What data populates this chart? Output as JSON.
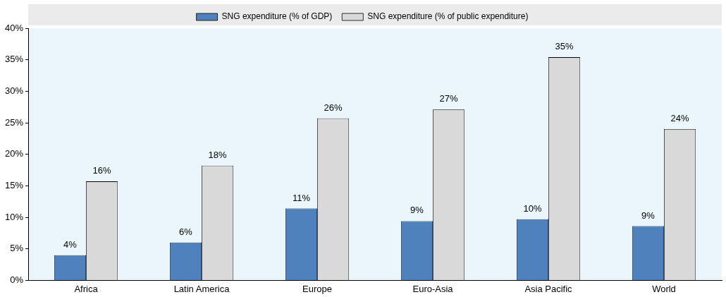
{
  "chart_data": {
    "type": "bar",
    "categories": [
      "Africa",
      "Latin America",
      "Europe",
      "Euro-Asia",
      "Asia Pacific",
      "World"
    ],
    "series": [
      {
        "name": "SNG expenditure (% of GDP)",
        "color": "#4f81bd",
        "values": [
          4.0,
          6.0,
          11.4,
          9.4,
          9.7,
          8.6
        ],
        "value_labels": [
          "4%",
          "6%",
          "11%",
          "9%",
          "10%",
          "9%"
        ]
      },
      {
        "name": "SNG expenditure (% of public expenditure)",
        "color": "#d9d9d9",
        "values": [
          15.7,
          18.2,
          25.7,
          27.1,
          35.4,
          24.0
        ],
        "value_labels": [
          "16%",
          "18%",
          "26%",
          "27%",
          "35%",
          "24%"
        ]
      }
    ],
    "ylim": [
      0,
      40
    ],
    "yticks": [
      {
        "value": 0,
        "label": "0%"
      },
      {
        "value": 5,
        "label": "5%"
      },
      {
        "value": 10,
        "label": "10%"
      },
      {
        "value": 15,
        "label": "15%"
      },
      {
        "value": 20,
        "label": "20%"
      },
      {
        "value": 25,
        "label": "25%"
      },
      {
        "value": 30,
        "label": "30%"
      },
      {
        "value": 35,
        "label": "35%"
      },
      {
        "value": 40,
        "label": "40%"
      }
    ],
    "grid": false,
    "legend": "top"
  }
}
